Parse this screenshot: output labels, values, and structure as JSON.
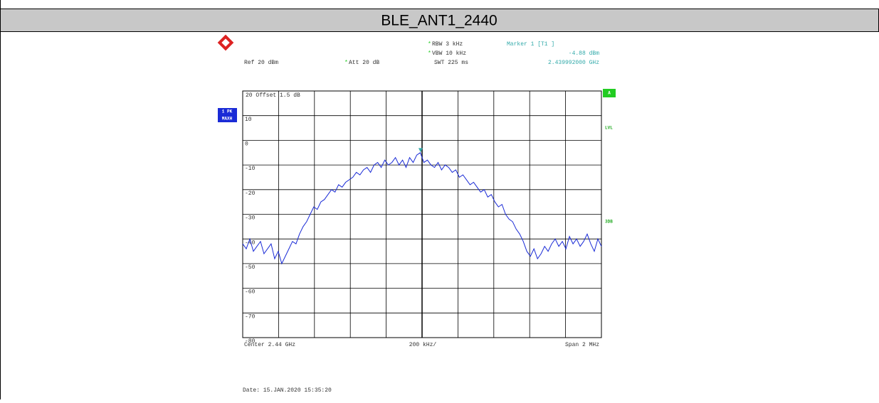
{
  "chart_data": {
    "type": "line",
    "title": "BLE_ANT1_2440",
    "xlim": [
      2.439,
      2.441
    ],
    "ylim": [
      -80,
      20
    ],
    "yticks": [
      10,
      0,
      -10,
      -20,
      -30,
      -40,
      -50,
      -60,
      -70,
      -80
    ],
    "grid": true,
    "color": "#1a2bd6",
    "values": [
      -42,
      -44,
      -40,
      -45,
      -43,
      -41,
      -46,
      -44,
      -42,
      -48,
      -45,
      -50,
      -47,
      -44,
      -41,
      -42,
      -38,
      -35,
      -33,
      -30,
      -27,
      -28,
      -25,
      -24,
      -22,
      -20,
      -21,
      -18,
      -19,
      -17,
      -16,
      -15,
      -13,
      -14,
      -12,
      -11,
      -13,
      -10,
      -9,
      -11,
      -8,
      -10,
      -9,
      -7,
      -10,
      -8,
      -11,
      -7,
      -9,
      -6,
      -5,
      -9,
      -8,
      -10,
      -11,
      -9,
      -12,
      -10,
      -11,
      -13,
      -12,
      -15,
      -14,
      -16,
      -18,
      -17,
      -19,
      -21,
      -20,
      -23,
      -22,
      -25,
      -27,
      -26,
      -30,
      -32,
      -33,
      -36,
      -38,
      -41,
      -45,
      -47,
      -44,
      -48,
      -46,
      -43,
      -45,
      -42,
      -40,
      -43,
      -41,
      -44,
      -39,
      -42,
      -40,
      -43,
      -41,
      -38,
      -42,
      -45,
      -40,
      -43
    ],
    "marker": {
      "label": "Marker 1 [T1 ]",
      "value": -4.88,
      "value_label": "-4.88 dBm",
      "x": 2.439992,
      "x_label": "2.439992000 GHz"
    },
    "annotations": {
      "rbw": "RBW  3 kHz",
      "vbw": "VBW  10 kHz",
      "swt": "SWT  225 ms",
      "ref": "Ref  20 dBm",
      "att": "Att  20 dB",
      "offset": "20  Offset   1.5 dB",
      "trace1": "1 PK",
      "trace2": "MAXH",
      "a": "A",
      "lvl": "LVL",
      "db3": "3DB",
      "center": "Center  2.44 GHz",
      "div": "200 kHz/",
      "span": "Span  2 MHz",
      "date": "Date: 15.JAN.2020  15:35:20"
    }
  }
}
